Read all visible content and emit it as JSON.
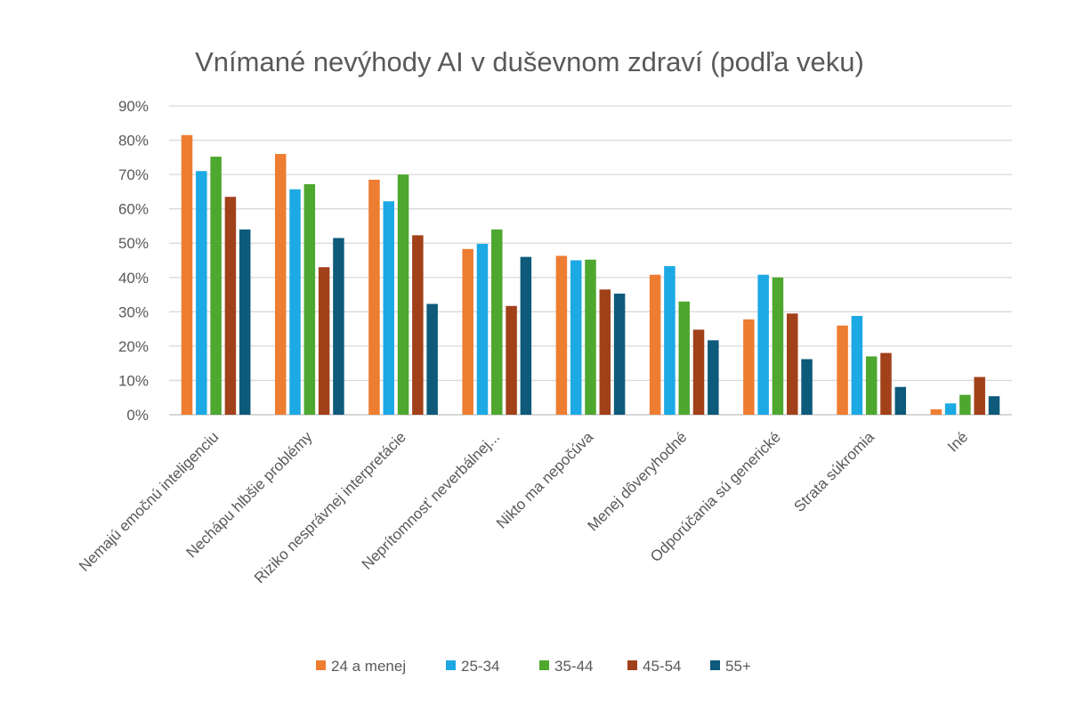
{
  "chart_data": {
    "type": "bar",
    "title": "Vnímané nevýhody AI v duševnom zdraví (podľa veku)",
    "xlabel": "",
    "ylabel": "",
    "ylim": [
      0,
      90
    ],
    "y_ticks": [
      "0%",
      "10%",
      "20%",
      "30%",
      "40%",
      "50%",
      "60%",
      "70%",
      "80%",
      "90%"
    ],
    "grid": true,
    "legend_position": "bottom",
    "categories": [
      "Nemajú emočnú inteligenciu",
      "Nechápu hlbšie problémy",
      "Riziko nesprávnej interpretácie",
      "Neprítomnosť neverbálnej...",
      "Nikto ma nepočúva",
      "Menej dôveryhodné",
      "Odporúčania sú generické",
      "Strata súkromia",
      "Iné"
    ],
    "series": [
      {
        "name": "24 a menej",
        "color": "#ed7d31",
        "values": [
          81.5,
          76,
          68.5,
          48.3,
          46.3,
          40.8,
          27.8,
          26,
          1.6
        ]
      },
      {
        "name": "25-34",
        "color": "#1ca9e4",
        "values": [
          71,
          65.7,
          62.2,
          49.8,
          45,
          43.3,
          40.8,
          28.8,
          3.3
        ]
      },
      {
        "name": "35-44",
        "color": "#4ea72e",
        "values": [
          75.2,
          67.2,
          70,
          54,
          45.2,
          33,
          40,
          17,
          5.8
        ]
      },
      {
        "name": "45-54",
        "color": "#a1411a",
        "values": [
          63.5,
          43,
          52.3,
          31.7,
          36.5,
          24.8,
          29.5,
          18,
          11
        ]
      },
      {
        "name": "55+",
        "color": "#0e5a7a",
        "values": [
          54,
          51.5,
          32.3,
          46,
          35.3,
          21.7,
          16.2,
          8.1,
          5.4
        ]
      }
    ]
  }
}
